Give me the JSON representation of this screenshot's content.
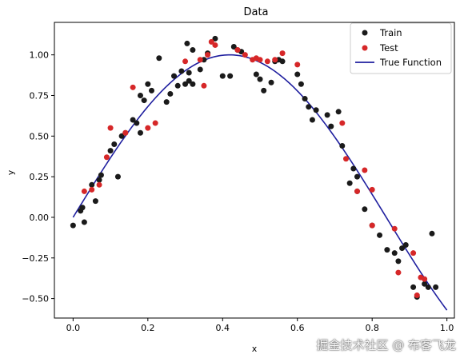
{
  "chart_data": {
    "type": "scatter",
    "title": "Data",
    "xlabel": "x",
    "ylabel": "y",
    "xlim": [
      -0.05,
      1.02
    ],
    "ylim": [
      -0.62,
      1.2
    ],
    "xticks": [
      "0.0",
      "0.2",
      "0.4",
      "0.6",
      "0.8",
      "1.0"
    ],
    "yticks": [
      "−0.50",
      "−0.25",
      "0.00",
      "0.25",
      "0.50",
      "0.75",
      "1.00"
    ],
    "legend_position": "top-right",
    "grid": false,
    "series": [
      {
        "name": "Train",
        "kind": "scatter",
        "color": "#1a1a1a",
        "points": [
          [
            0.0,
            -0.05
          ],
          [
            0.02,
            0.04
          ],
          [
            0.025,
            0.06
          ],
          [
            0.03,
            -0.03
          ],
          [
            0.05,
            0.2
          ],
          [
            0.06,
            0.1
          ],
          [
            0.07,
            0.23
          ],
          [
            0.075,
            0.26
          ],
          [
            0.1,
            0.41
          ],
          [
            0.11,
            0.45
          ],
          [
            0.12,
            0.25
          ],
          [
            0.13,
            0.5
          ],
          [
            0.14,
            0.52
          ],
          [
            0.16,
            0.6
          ],
          [
            0.17,
            0.58
          ],
          [
            0.18,
            0.75
          ],
          [
            0.18,
            0.52
          ],
          [
            0.19,
            0.72
          ],
          [
            0.2,
            0.82
          ],
          [
            0.21,
            0.78
          ],
          [
            0.23,
            0.98
          ],
          [
            0.25,
            0.71
          ],
          [
            0.26,
            0.76
          ],
          [
            0.27,
            0.87
          ],
          [
            0.28,
            0.81
          ],
          [
            0.29,
            0.9
          ],
          [
            0.3,
            0.82
          ],
          [
            0.305,
            1.07
          ],
          [
            0.31,
            0.84
          ],
          [
            0.31,
            0.89
          ],
          [
            0.32,
            1.03
          ],
          [
            0.32,
            0.82
          ],
          [
            0.34,
            0.91
          ],
          [
            0.35,
            0.97
          ],
          [
            0.36,
            1.01
          ],
          [
            0.38,
            1.1
          ],
          [
            0.4,
            0.87
          ],
          [
            0.42,
            0.87
          ],
          [
            0.43,
            1.05
          ],
          [
            0.44,
            1.03
          ],
          [
            0.45,
            1.02
          ],
          [
            0.49,
            0.88
          ],
          [
            0.5,
            0.85
          ],
          [
            0.51,
            0.78
          ],
          [
            0.53,
            0.83
          ],
          [
            0.54,
            0.96
          ],
          [
            0.55,
            0.97
          ],
          [
            0.56,
            0.96
          ],
          [
            0.6,
            0.88
          ],
          [
            0.61,
            0.82
          ],
          [
            0.62,
            0.73
          ],
          [
            0.63,
            0.68
          ],
          [
            0.64,
            0.6
          ],
          [
            0.65,
            0.66
          ],
          [
            0.68,
            0.63
          ],
          [
            0.69,
            0.56
          ],
          [
            0.71,
            0.65
          ],
          [
            0.72,
            0.44
          ],
          [
            0.74,
            0.21
          ],
          [
            0.75,
            0.3
          ],
          [
            0.76,
            0.16
          ],
          [
            0.76,
            0.25
          ],
          [
            0.78,
            0.05
          ],
          [
            0.8,
            -0.05
          ],
          [
            0.82,
            -0.11
          ],
          [
            0.84,
            -0.2
          ],
          [
            0.86,
            -0.22
          ],
          [
            0.87,
            -0.27
          ],
          [
            0.88,
            -0.19
          ],
          [
            0.89,
            -0.17
          ],
          [
            0.91,
            -0.43
          ],
          [
            0.92,
            -0.49
          ],
          [
            0.94,
            -0.41
          ],
          [
            0.95,
            -0.43
          ],
          [
            0.96,
            -0.1
          ],
          [
            0.97,
            -0.43
          ]
        ]
      },
      {
        "name": "Test",
        "kind": "scatter",
        "color": "#d62728",
        "points": [
          [
            0.03,
            0.16
          ],
          [
            0.05,
            0.17
          ],
          [
            0.07,
            0.2
          ],
          [
            0.09,
            0.37
          ],
          [
            0.1,
            0.55
          ],
          [
            0.14,
            0.52
          ],
          [
            0.16,
            0.8
          ],
          [
            0.2,
            0.55
          ],
          [
            0.22,
            0.58
          ],
          [
            0.3,
            0.96
          ],
          [
            0.34,
            0.97
          ],
          [
            0.35,
            0.81
          ],
          [
            0.36,
            1.0
          ],
          [
            0.37,
            1.08
          ],
          [
            0.38,
            1.06
          ],
          [
            0.44,
            1.03
          ],
          [
            0.46,
            1.0
          ],
          [
            0.48,
            0.97
          ],
          [
            0.49,
            0.98
          ],
          [
            0.5,
            0.97
          ],
          [
            0.52,
            0.96
          ],
          [
            0.54,
            0.97
          ],
          [
            0.56,
            1.01
          ],
          [
            0.6,
            0.94
          ],
          [
            0.72,
            0.58
          ],
          [
            0.73,
            0.36
          ],
          [
            0.76,
            0.16
          ],
          [
            0.78,
            0.29
          ],
          [
            0.8,
            0.17
          ],
          [
            0.8,
            -0.05
          ],
          [
            0.86,
            -0.07
          ],
          [
            0.87,
            -0.34
          ],
          [
            0.91,
            -0.22
          ],
          [
            0.92,
            -0.48
          ],
          [
            0.93,
            -0.37
          ],
          [
            0.94,
            -0.38
          ]
        ]
      },
      {
        "name": "True Function",
        "kind": "line",
        "color": "#1f1f9f",
        "function": "sin(3.75x)"
      }
    ]
  },
  "watermark": "掘金技术社区 @ 布客飞龙"
}
